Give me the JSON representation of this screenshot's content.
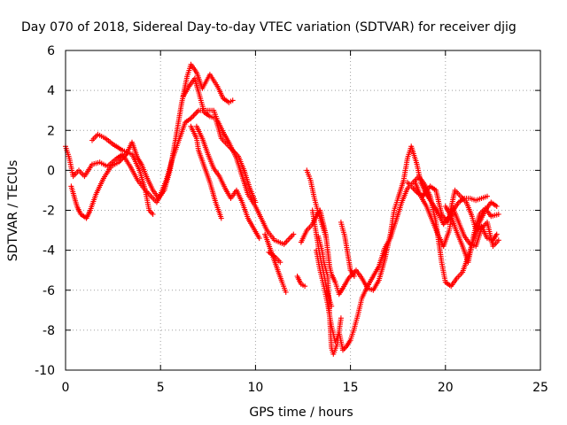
{
  "chart_data": {
    "type": "scatter",
    "title": "Day 070 of 2018, Sidereal Day-to-day VTEC variation (SDTVAR) for receiver djig",
    "xlabel": "GPS time / hours",
    "ylabel": "SDTVAR / TECUs",
    "xlim": [
      0,
      25
    ],
    "ylim": [
      -10,
      6
    ],
    "xticks": [
      0,
      5,
      10,
      15,
      20,
      25
    ],
    "yticks": [
      -10,
      -8,
      -6,
      -4,
      -2,
      0,
      2,
      4,
      6
    ],
    "grid": true,
    "marker": "+",
    "color": "#ff0000",
    "series": [
      {
        "tracks": [
          [
            [
              0.0,
              1.2
            ],
            [
              0.2,
              0.6
            ],
            [
              0.4,
              -0.3
            ],
            [
              0.7,
              0.0
            ],
            [
              1.0,
              -0.3
            ],
            [
              1.4,
              0.3
            ],
            [
              1.8,
              0.4
            ],
            [
              2.2,
              0.2
            ],
            [
              2.7,
              0.6
            ],
            [
              3.0,
              0.8
            ],
            [
              3.4,
              0.2
            ],
            [
              3.8,
              -0.5
            ],
            [
              4.2,
              -1.0
            ],
            [
              4.5,
              -1.3
            ],
            [
              4.8,
              -1.6
            ],
            [
              5.0,
              -1.2
            ],
            [
              5.3,
              -0.5
            ],
            [
              5.6,
              0.5
            ],
            [
              6.0,
              1.6
            ],
            [
              6.3,
              2.4
            ],
            [
              6.6,
              2.6
            ],
            [
              7.0,
              3.0
            ],
            [
              7.4,
              3.0
            ],
            [
              7.8,
              3.0
            ],
            [
              8.0,
              2.5
            ],
            [
              8.3,
              1.9
            ],
            [
              8.6,
              1.4
            ],
            [
              9.0,
              0.6
            ],
            [
              9.3,
              -0.3
            ],
            [
              9.6,
              -1.2
            ],
            [
              10.0,
              -1.8
            ],
            [
              10.3,
              -2.4
            ],
            [
              10.6,
              -3.0
            ],
            [
              11.0,
              -3.5
            ],
            [
              11.5,
              -3.7
            ],
            [
              12.0,
              -3.2
            ]
          ],
          [
            [
              0.3,
              -0.8
            ],
            [
              0.6,
              -1.8
            ],
            [
              0.8,
              -2.2
            ],
            [
              1.1,
              -2.4
            ],
            [
              1.3,
              -2.0
            ],
            [
              1.6,
              -1.2
            ],
            [
              2.0,
              -0.4
            ],
            [
              2.4,
              0.2
            ],
            [
              2.8,
              0.4
            ],
            [
              3.2,
              0.8
            ],
            [
              3.5,
              1.4
            ],
            [
              3.8,
              0.6
            ],
            [
              4.0,
              0.3
            ],
            [
              4.3,
              -0.4
            ],
            [
              4.6,
              -1.0
            ],
            [
              4.9,
              -1.4
            ],
            [
              5.2,
              -1.0
            ],
            [
              5.5,
              0.0
            ],
            [
              5.8,
              1.6
            ],
            [
              6.1,
              3.3
            ],
            [
              6.4,
              4.7
            ],
            [
              6.6,
              5.3
            ],
            [
              6.9,
              4.9
            ],
            [
              7.2,
              4.1
            ],
            [
              7.6,
              4.8
            ],
            [
              8.0,
              4.2
            ],
            [
              8.3,
              3.6
            ],
            [
              8.6,
              3.4
            ],
            [
              8.8,
              3.5
            ]
          ],
          [
            [
              1.4,
              1.5
            ],
            [
              1.7,
              1.8
            ],
            [
              2.1,
              1.6
            ],
            [
              2.5,
              1.3
            ],
            [
              3.0,
              1.0
            ],
            [
              3.5,
              0.8
            ],
            [
              3.9,
              0.0
            ],
            [
              4.2,
              -1.0
            ],
            [
              4.4,
              -2.0
            ],
            [
              4.6,
              -2.2
            ]
          ],
          [
            [
              6.2,
              3.7
            ],
            [
              6.5,
              4.2
            ],
            [
              6.8,
              4.6
            ],
            [
              7.1,
              3.6
            ],
            [
              7.3,
              2.9
            ],
            [
              7.6,
              2.7
            ],
            [
              7.9,
              2.6
            ],
            [
              8.2,
              1.6
            ],
            [
              8.5,
              1.3
            ],
            [
              8.8,
              1.0
            ],
            [
              9.1,
              0.7
            ],
            [
              9.4,
              0.0
            ],
            [
              9.7,
              -0.9
            ],
            [
              10.0,
              -1.6
            ]
          ],
          [
            [
              6.9,
              2.2
            ],
            [
              7.2,
              1.6
            ],
            [
              7.5,
              0.8
            ],
            [
              7.8,
              0.1
            ],
            [
              8.1,
              -0.3
            ],
            [
              8.4,
              -0.9
            ],
            [
              8.7,
              -1.4
            ],
            [
              9.0,
              -1.0
            ],
            [
              9.3,
              -1.6
            ],
            [
              9.6,
              -2.4
            ],
            [
              9.9,
              -2.9
            ],
            [
              10.2,
              -3.4
            ]
          ],
          [
            [
              6.6,
              2.2
            ],
            [
              6.9,
              1.6
            ],
            [
              7.0,
              1.0
            ],
            [
              7.3,
              0.2
            ],
            [
              7.6,
              -0.6
            ],
            [
              7.9,
              -1.6
            ],
            [
              8.2,
              -2.4
            ]
          ],
          [
            [
              10.5,
              -3.2
            ],
            [
              10.8,
              -4.0
            ],
            [
              11.1,
              -4.8
            ],
            [
              11.4,
              -5.6
            ],
            [
              11.6,
              -6.1
            ]
          ],
          [
            [
              10.7,
              -4.1
            ],
            [
              11.0,
              -4.3
            ],
            [
              11.3,
              -4.6
            ]
          ],
          [
            [
              12.2,
              -5.3
            ],
            [
              12.4,
              -5.7
            ],
            [
              12.6,
              -5.8
            ]
          ],
          [
            [
              12.4,
              -3.6
            ],
            [
              12.7,
              -3.0
            ],
            [
              13.0,
              -2.7
            ],
            [
              13.2,
              -2.3
            ],
            [
              13.4,
              -2.0
            ],
            [
              13.7,
              -3.2
            ],
            [
              13.9,
              -4.8
            ],
            [
              14.0,
              -5.2
            ],
            [
              14.2,
              -5.6
            ],
            [
              14.4,
              -6.2
            ],
            [
              14.6,
              -5.9
            ],
            [
              14.9,
              -5.4
            ],
            [
              15.3,
              -5.0
            ],
            [
              15.6,
              -5.4
            ],
            [
              15.9,
              -5.9
            ],
            [
              16.2,
              -6.0
            ],
            [
              16.5,
              -5.5
            ],
            [
              16.8,
              -4.5
            ],
            [
              17.1,
              -3.2
            ],
            [
              17.3,
              -2.0
            ],
            [
              17.5,
              -1.4
            ],
            [
              17.8,
              -0.5
            ],
            [
              18.0,
              0.6
            ],
            [
              18.2,
              1.2
            ],
            [
              18.5,
              0.3
            ],
            [
              18.7,
              -0.6
            ],
            [
              19.0,
              -1.2
            ],
            [
              19.2,
              -1.5
            ],
            [
              19.4,
              -1.8
            ],
            [
              19.6,
              -2.1
            ],
            [
              19.9,
              -2.7
            ],
            [
              20.2,
              -2.3
            ],
            [
              20.5,
              -1.0
            ],
            [
              20.8,
              -1.3
            ],
            [
              21.1,
              -1.6
            ],
            [
              21.4,
              -2.3
            ],
            [
              21.6,
              -3.0
            ],
            [
              21.9,
              -2.8
            ],
            [
              22.2,
              -3.4
            ],
            [
              22.5,
              -3.5
            ],
            [
              22.7,
              -3.2
            ]
          ],
          [
            [
              12.7,
              0.0
            ],
            [
              12.9,
              -0.5
            ],
            [
              13.1,
              -1.4
            ],
            [
              13.3,
              -2.1
            ],
            [
              13.5,
              -2.7
            ],
            [
              13.7,
              -3.3
            ]
          ],
          [
            [
              13.0,
              -2.0
            ],
            [
              13.2,
              -3.2
            ],
            [
              13.4,
              -4.3
            ],
            [
              13.6,
              -5.2
            ],
            [
              13.8,
              -6.2
            ],
            [
              14.0,
              -6.8
            ]
          ],
          [
            [
              13.2,
              -4.0
            ],
            [
              13.4,
              -5.0
            ],
            [
              13.6,
              -5.8
            ],
            [
              13.8,
              -6.7
            ],
            [
              14.0,
              -7.8
            ],
            [
              14.2,
              -8.6
            ],
            [
              14.4,
              -8.1
            ],
            [
              14.6,
              -9.0
            ],
            [
              14.8,
              -8.8
            ],
            [
              15.0,
              -8.5
            ],
            [
              15.2,
              -7.9
            ],
            [
              15.4,
              -7.2
            ],
            [
              15.6,
              -6.4
            ],
            [
              15.9,
              -5.8
            ],
            [
              16.2,
              -5.3
            ],
            [
              16.5,
              -4.8
            ],
            [
              16.8,
              -3.9
            ],
            [
              17.1,
              -3.4
            ],
            [
              17.4,
              -2.5
            ],
            [
              17.7,
              -1.6
            ],
            [
              18.0,
              -0.9
            ],
            [
              18.3,
              -0.6
            ],
            [
              18.6,
              -0.3
            ],
            [
              18.9,
              -0.7
            ],
            [
              19.2,
              -1.3
            ],
            [
              19.5,
              -2.6
            ],
            [
              19.8,
              -4.6
            ],
            [
              20.0,
              -5.6
            ],
            [
              20.3,
              -5.8
            ],
            [
              20.6,
              -5.4
            ],
            [
              20.9,
              -5.1
            ],
            [
              21.2,
              -4.3
            ],
            [
              21.5,
              -3.4
            ],
            [
              21.8,
              -2.6
            ],
            [
              22.1,
              -2.0
            ],
            [
              22.4,
              -1.6
            ],
            [
              22.7,
              -1.8
            ]
          ],
          [
            [
              13.3,
              -3.3
            ],
            [
              13.5,
              -4.0
            ],
            [
              13.6,
              -4.6
            ],
            [
              13.8,
              -5.3
            ],
            [
              13.9,
              -7.2
            ],
            [
              14.0,
              -8.9
            ],
            [
              14.1,
              -9.2
            ],
            [
              14.3,
              -8.7
            ],
            [
              14.5,
              -7.4
            ]
          ],
          [
            [
              14.5,
              -2.6
            ],
            [
              14.7,
              -3.3
            ],
            [
              15.0,
              -5.0
            ],
            [
              15.2,
              -5.3
            ]
          ],
          [
            [
              18.4,
              -0.6
            ],
            [
              18.7,
              -1.3
            ],
            [
              19.0,
              -1.8
            ],
            [
              19.3,
              -2.5
            ],
            [
              19.6,
              -3.2
            ],
            [
              19.9,
              -3.8
            ],
            [
              20.2,
              -3.0
            ],
            [
              20.4,
              -1.9
            ],
            [
              20.7,
              -2.6
            ],
            [
              21.0,
              -3.3
            ],
            [
              21.3,
              -3.7
            ],
            [
              21.6,
              -3.8
            ],
            [
              21.9,
              -2.9
            ],
            [
              22.2,
              -2.6
            ],
            [
              22.5,
              -3.8
            ],
            [
              22.8,
              -3.5
            ]
          ],
          [
            [
              20.0,
              -1.8
            ],
            [
              20.3,
              -2.3
            ],
            [
              20.6,
              -3.1
            ],
            [
              20.9,
              -3.8
            ],
            [
              21.2,
              -4.6
            ],
            [
              21.5,
              -3.2
            ],
            [
              21.8,
              -2.2
            ],
            [
              22.1,
              -1.9
            ],
            [
              22.4,
              -2.3
            ],
            [
              22.8,
              -2.2
            ]
          ],
          [
            [
              18.0,
              -0.6
            ],
            [
              18.3,
              -0.9
            ],
            [
              18.5,
              -1.1
            ],
            [
              18.8,
              -1.3
            ],
            [
              19.0,
              -1.0
            ],
            [
              19.2,
              -0.8
            ],
            [
              19.5,
              -1.0
            ],
            [
              19.8,
              -2.2
            ],
            [
              20.1,
              -2.6
            ],
            [
              20.4,
              -2.0
            ],
            [
              20.7,
              -1.6
            ],
            [
              21.0,
              -1.4
            ],
            [
              21.3,
              -1.4
            ],
            [
              21.6,
              -1.5
            ],
            [
              21.9,
              -1.4
            ],
            [
              22.2,
              -1.3
            ]
          ]
        ]
      }
    ]
  }
}
